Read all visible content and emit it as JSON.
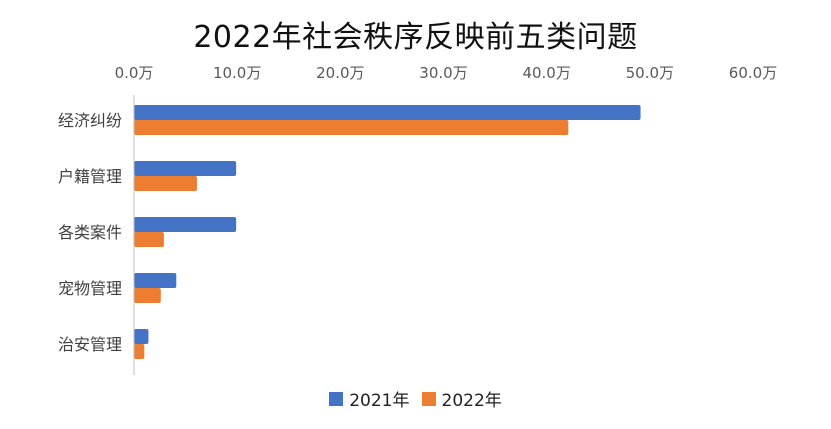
{
  "chart_data": {
    "type": "bar",
    "orientation": "horizontal",
    "title": "2022年社会秩序反映前五类问题",
    "categories": [
      "经济纠纷",
      "户籍管理",
      "各类案件",
      "宠物管理",
      "治安管理"
    ],
    "series": [
      {
        "name": "2021年",
        "color": "#4472C4",
        "values": [
          49.1,
          9.9,
          9.9,
          4.1,
          1.4
        ]
      },
      {
        "name": "2022年",
        "color": "#ED7D31",
        "values": [
          42.1,
          6.1,
          2.9,
          2.6,
          1.0
        ]
      }
    ],
    "xlim": [
      0,
      60
    ],
    "x_ticks": [
      "0.0万",
      "10.0万",
      "20.0万",
      "30.0万",
      "40.0万",
      "50.0万",
      "60.0万"
    ],
    "x_axis_position": "top",
    "grid": false,
    "legend_position": "bottom"
  }
}
